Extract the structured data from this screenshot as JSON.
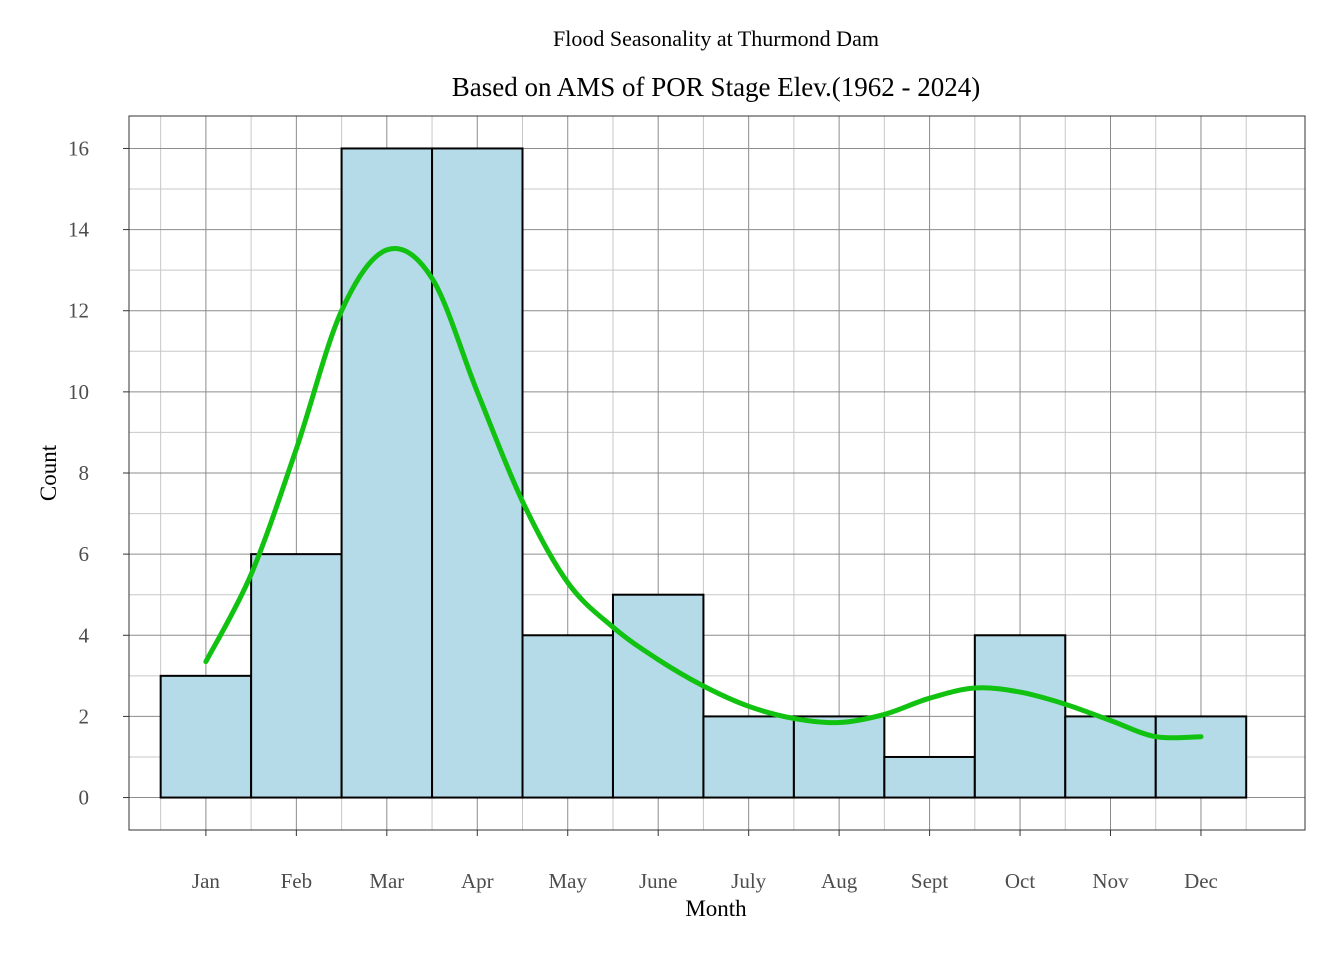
{
  "chart_data": {
    "type": "bar",
    "suptitle": "Flood Seasonality at Thurmond Dam",
    "title": "Based on AMS of POR Stage Elev.(1962 - 2024)",
    "xlabel": "Month",
    "ylabel": "Count",
    "categories": [
      "Jan",
      "Feb",
      "Mar",
      "Apr",
      "May",
      "June",
      "July",
      "Aug",
      "Sept",
      "Oct",
      "Nov",
      "Dec"
    ],
    "values": [
      3,
      6,
      16,
      16,
      4,
      5,
      2,
      2,
      1,
      4,
      2,
      2
    ],
    "yticks": [
      0,
      2,
      4,
      6,
      8,
      10,
      12,
      14,
      16
    ],
    "ylim": [
      -0.8,
      16.8
    ],
    "xlim": [
      0.15,
      13.15
    ],
    "bar_fill": "#b4dbe7",
    "bar_edge": "#000000",
    "grid": true,
    "grid_major_color": "#8c8c8c",
    "grid_minor_color": "#c8c8c8",
    "curve": {
      "color": "#11c211",
      "x": [
        1.0,
        1.5,
        2.0,
        2.5,
        3.0,
        3.5,
        4.0,
        4.5,
        5.0,
        5.5,
        6.0,
        6.5,
        7.0,
        7.5,
        8.0,
        8.5,
        9.0,
        9.5,
        10.0,
        10.5,
        11.0,
        11.5,
        12.0
      ],
      "y": [
        3.35,
        5.5,
        8.6,
        12.0,
        13.5,
        12.8,
        10.0,
        7.3,
        5.3,
        4.2,
        3.4,
        2.75,
        2.25,
        1.95,
        1.85,
        2.05,
        2.45,
        2.7,
        2.6,
        2.3,
        1.9,
        1.5,
        1.5
      ]
    }
  }
}
